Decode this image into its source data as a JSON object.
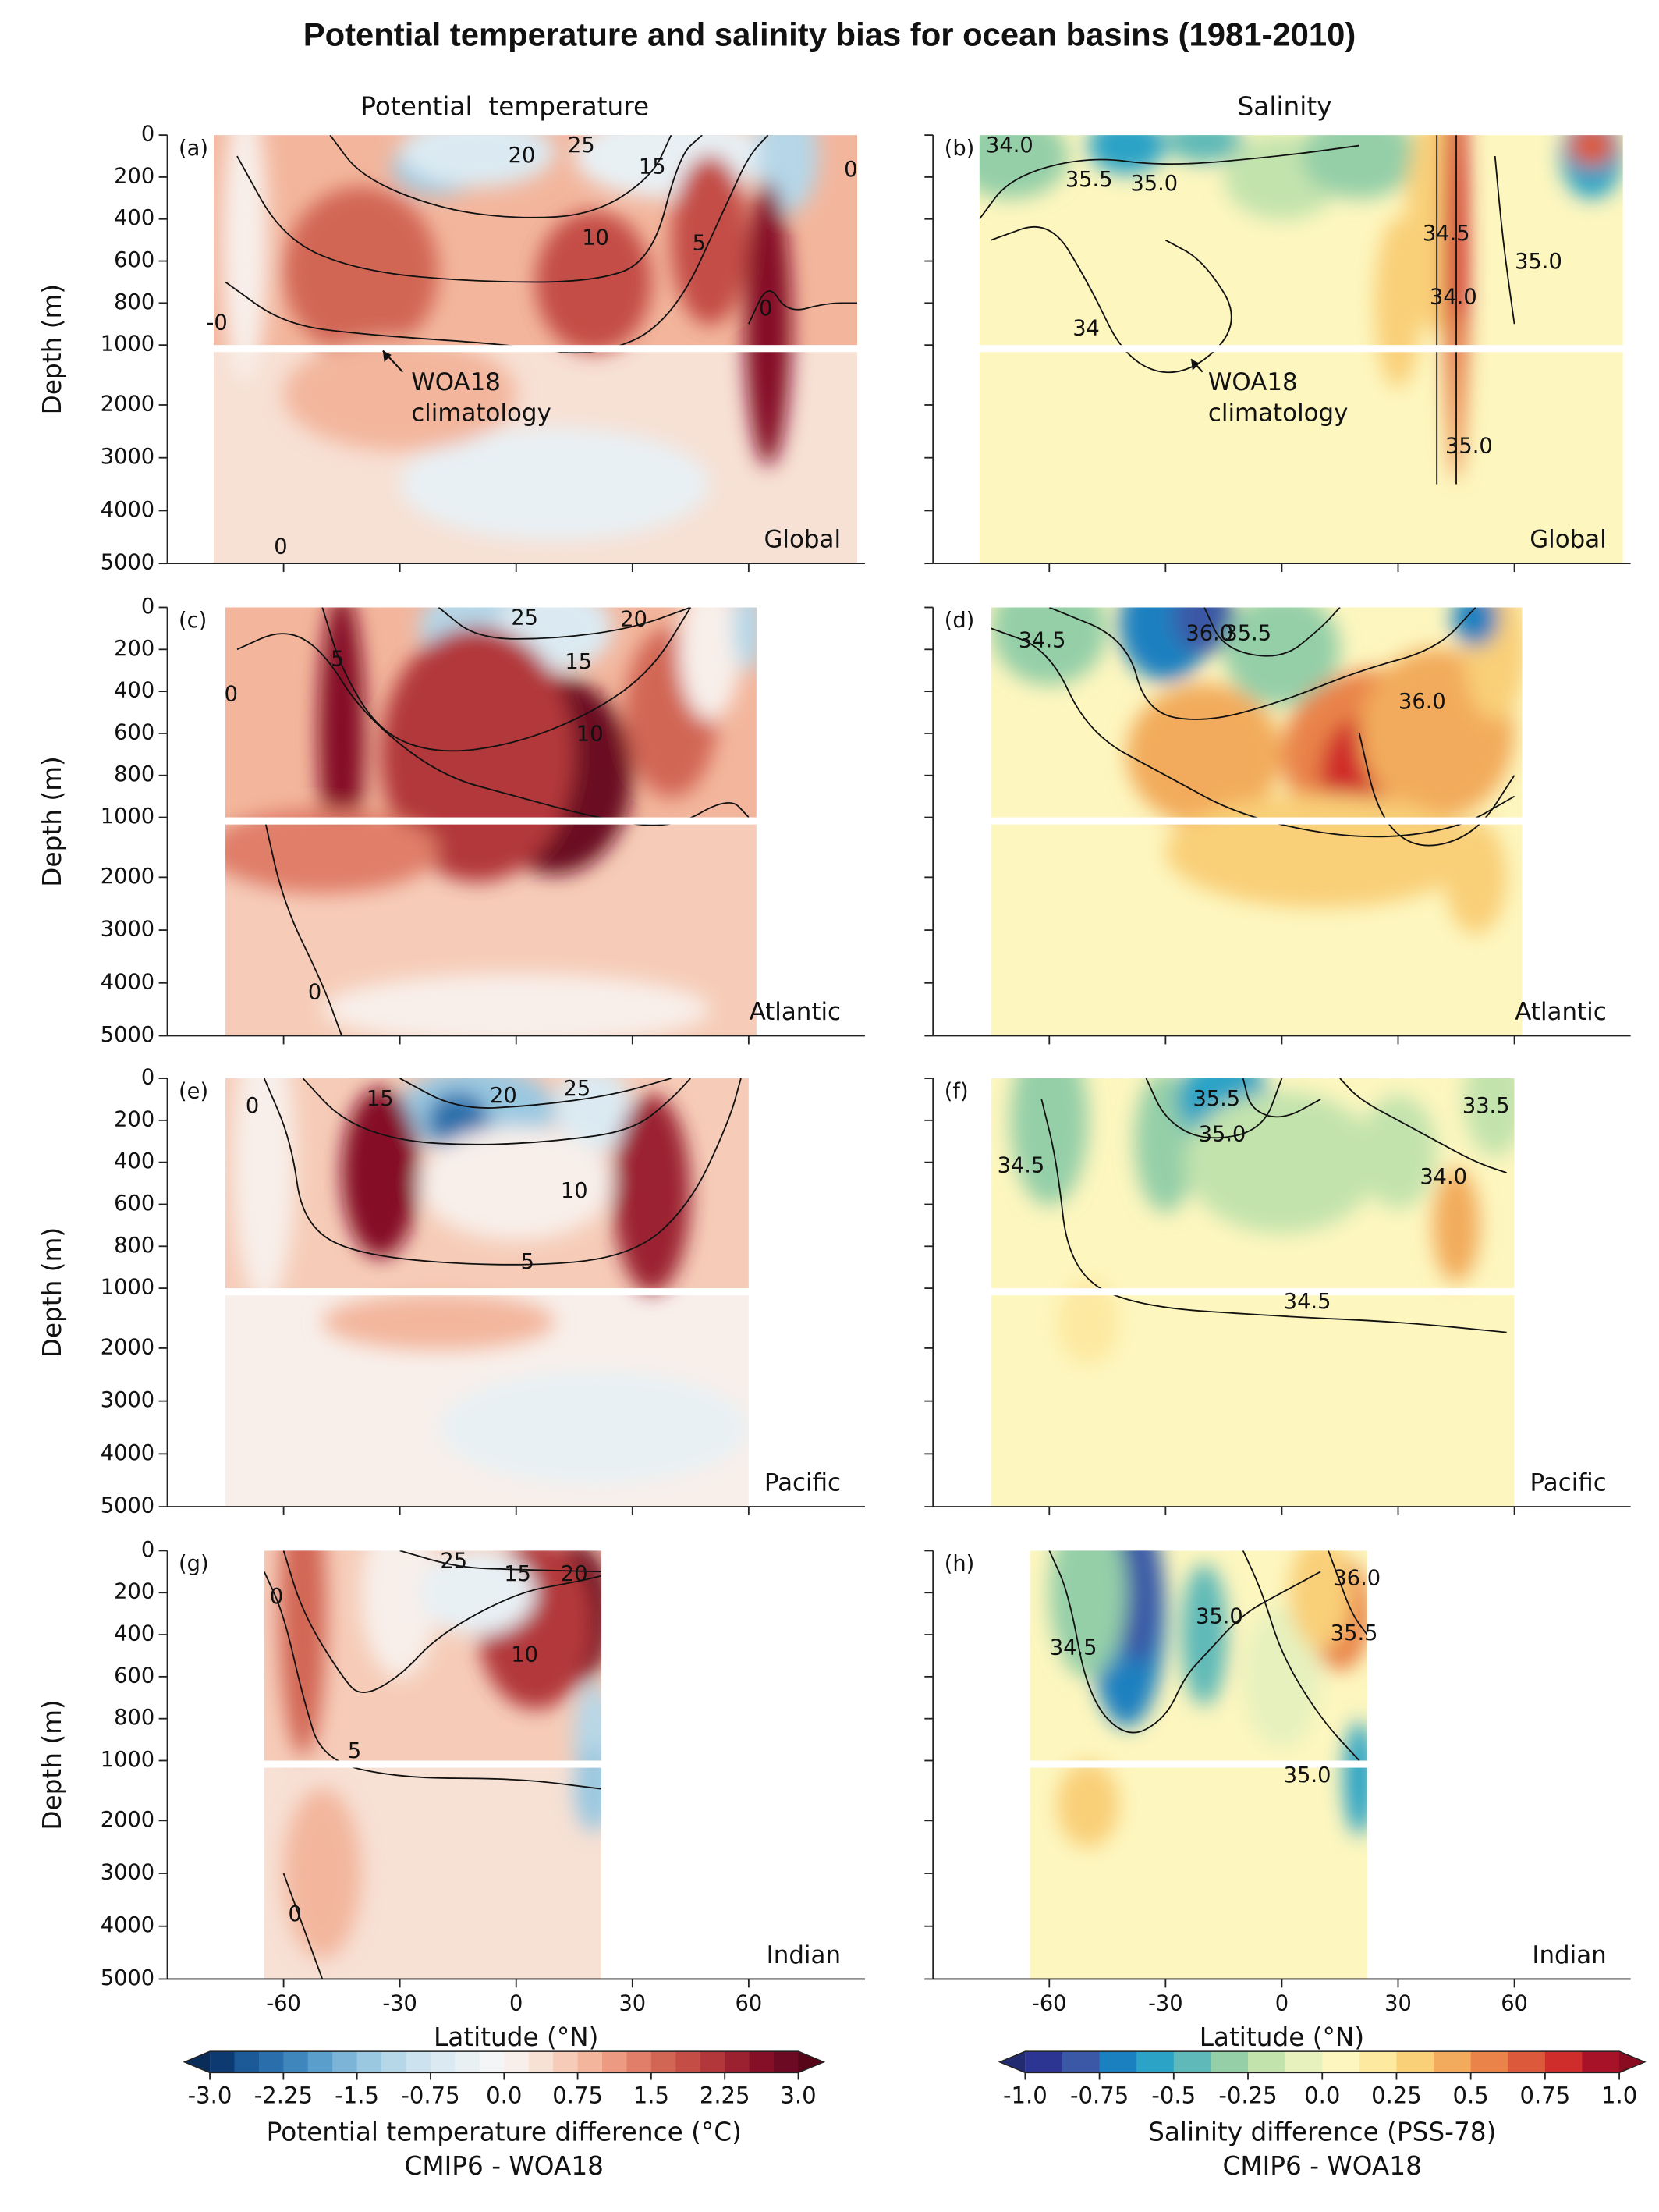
{
  "title": "Potential temperature and salinity bias for ocean basins (1981-2010)",
  "columns": [
    "Potential  temperature",
    "Salinity"
  ],
  "chart_data": [
    {
      "type": "contour",
      "label": "(a)",
      "region": "Global",
      "xlim": [
        -90,
        90
      ],
      "xticks": [
        -60,
        -30,
        0,
        30,
        60
      ],
      "ylim": [
        0,
        5000
      ],
      "ybreak": 1000,
      "yticks": [
        0,
        200,
        400,
        600,
        800,
        1000,
        2000,
        3000,
        4000,
        5000
      ],
      "ylabel": "Depth (m)",
      "contour_labels": [
        "20",
        "25",
        "15",
        "10",
        "5",
        "0",
        "0",
        "-0",
        "0"
      ],
      "annotation": [
        "WOA18",
        "climatology"
      ]
    },
    {
      "type": "contour",
      "label": "(b)",
      "region": "Global",
      "xlim": [
        -90,
        90
      ],
      "xticks": [
        -60,
        -30,
        0,
        30,
        60
      ],
      "ylim": [
        0,
        5000
      ],
      "ybreak": 1000,
      "yticks": [
        0,
        200,
        400,
        600,
        800,
        1000,
        2000,
        3000,
        4000,
        5000
      ],
      "contour_labels": [
        "34.0",
        "35.5",
        "35.0",
        "34.5",
        "34.0",
        "35.0",
        "34",
        "35.0"
      ],
      "annotation": [
        "WOA18",
        "climatology"
      ]
    },
    {
      "type": "contour",
      "label": "(c)",
      "region": "Atlantic",
      "xlim": [
        -90,
        90
      ],
      "xticks": [
        -60,
        -30,
        0,
        30,
        60
      ],
      "ylim": [
        0,
        5000
      ],
      "ybreak": 1000,
      "yticks": [
        0,
        200,
        400,
        600,
        800,
        1000,
        2000,
        3000,
        4000,
        5000
      ],
      "ylabel": "Depth (m)",
      "contour_labels": [
        "25",
        "20",
        "15",
        "5",
        "0",
        "10",
        "0"
      ]
    },
    {
      "type": "contour",
      "label": "(d)",
      "region": "Atlantic",
      "xlim": [
        -90,
        90
      ],
      "xticks": [
        -60,
        -30,
        0,
        30,
        60
      ],
      "ylim": [
        0,
        5000
      ],
      "ybreak": 1000,
      "yticks": [
        0,
        200,
        400,
        600,
        800,
        1000,
        2000,
        3000,
        4000,
        5000
      ],
      "contour_labels": [
        "34.5",
        "36.0",
        "35.5",
        "36.0"
      ]
    },
    {
      "type": "contour",
      "label": "(e)",
      "region": "Pacific",
      "xlim": [
        -90,
        90
      ],
      "xticks": [
        -60,
        -30,
        0,
        30,
        60
      ],
      "ylim": [
        0,
        5000
      ],
      "ybreak": 1000,
      "yticks": [
        0,
        200,
        400,
        600,
        800,
        1000,
        2000,
        3000,
        4000,
        5000
      ],
      "ylabel": "Depth (m)",
      "contour_labels": [
        "0",
        "15",
        "20",
        "25",
        "10",
        "5"
      ]
    },
    {
      "type": "contour",
      "label": "(f)",
      "region": "Pacific",
      "xlim": [
        -90,
        90
      ],
      "xticks": [
        -60,
        -30,
        0,
        30,
        60
      ],
      "ylim": [
        0,
        5000
      ],
      "ybreak": 1000,
      "yticks": [
        0,
        200,
        400,
        600,
        800,
        1000,
        2000,
        3000,
        4000,
        5000
      ],
      "contour_labels": [
        "35.5",
        "35.0",
        "33.5",
        "34.5",
        "34.0",
        "34.5"
      ]
    },
    {
      "type": "contour",
      "label": "(g)",
      "region": "Indian",
      "xlim": [
        -90,
        90
      ],
      "xticks": [
        -60,
        -30,
        0,
        30,
        60
      ],
      "ylim": [
        0,
        5000
      ],
      "ybreak": 1000,
      "yticks": [
        0,
        200,
        400,
        600,
        800,
        1000,
        2000,
        3000,
        4000,
        5000
      ],
      "ylabel": "Depth (m)",
      "xlabel": "Latitude (°N)",
      "contour_labels": [
        "0",
        "25",
        "15",
        "20",
        "10",
        "5",
        "0"
      ]
    },
    {
      "type": "contour",
      "label": "(h)",
      "region": "Indian",
      "xlim": [
        -90,
        90
      ],
      "xticks": [
        -60,
        -30,
        0,
        30,
        60
      ],
      "ylim": [
        0,
        5000
      ],
      "ybreak": 1000,
      "yticks": [
        0,
        200,
        400,
        600,
        800,
        1000,
        2000,
        3000,
        4000,
        5000
      ],
      "xlabel": "Latitude (°N)",
      "contour_labels": [
        "34.5",
        "35.0",
        "36.0",
        "35.5",
        "35.0"
      ]
    }
  ],
  "colorbars": [
    {
      "label": "Potential temperature difference (°C)",
      "sublabel": "CMIP6 - WOA18",
      "lim": [
        -3,
        3
      ],
      "ticks": [
        {
          "value": -3,
          "label": "-3.0"
        },
        -2.25,
        -1.5,
        -0.75,
        {
          "value": 0,
          "label": "0.0"
        },
        0.75,
        1.5,
        2.25,
        {
          "value": 3,
          "label": "3.0"
        }
      ],
      "colors": [
        "#0d3a70",
        "#1b5a96",
        "#2a6fac",
        "#3f86bc",
        "#5a9ecb",
        "#7bb4d7",
        "#9ac8e1",
        "#b5d7e8",
        "#cce3ef",
        "#dbeaf2",
        "#e8f0f4",
        "#f3f5f6",
        "#f8efea",
        "#f7e0d4",
        "#f6ccb8",
        "#f3b69d",
        "#ec9a81",
        "#e07e69",
        "#d26655",
        "#c44e46",
        "#b2373a",
        "#9b2130",
        "#850f27",
        "#6b0a22"
      ],
      "extend_colors": [
        "#0a2c58",
        "#560618"
      ]
    },
    {
      "label": "Salinity difference (PSS-78)",
      "sublabel": "CMIP6 - WOA18",
      "lim": [
        -1,
        1
      ],
      "ticks": [
        {
          "value": -1,
          "label": "-1.0"
        },
        -0.75,
        -0.5,
        -0.25,
        {
          "value": 0,
          "label": "0.0"
        },
        0.25,
        0.5,
        0.75,
        {
          "value": 1,
          "label": "1.0"
        }
      ],
      "colors": [
        "#2c3591",
        "#3a58a6",
        "#1b80c0",
        "#2aa3c6",
        "#5fb9b8",
        "#94cfa8",
        "#c3e3ad",
        "#e6f1be",
        "#fdf6bf",
        "#fde9a0",
        "#f9cf78",
        "#f2ab5c",
        "#e9834a",
        "#dc5a3b",
        "#cf2c2c",
        "#a81228"
      ],
      "extend_colors": [
        "#222a70",
        "#8a0c20"
      ]
    }
  ]
}
